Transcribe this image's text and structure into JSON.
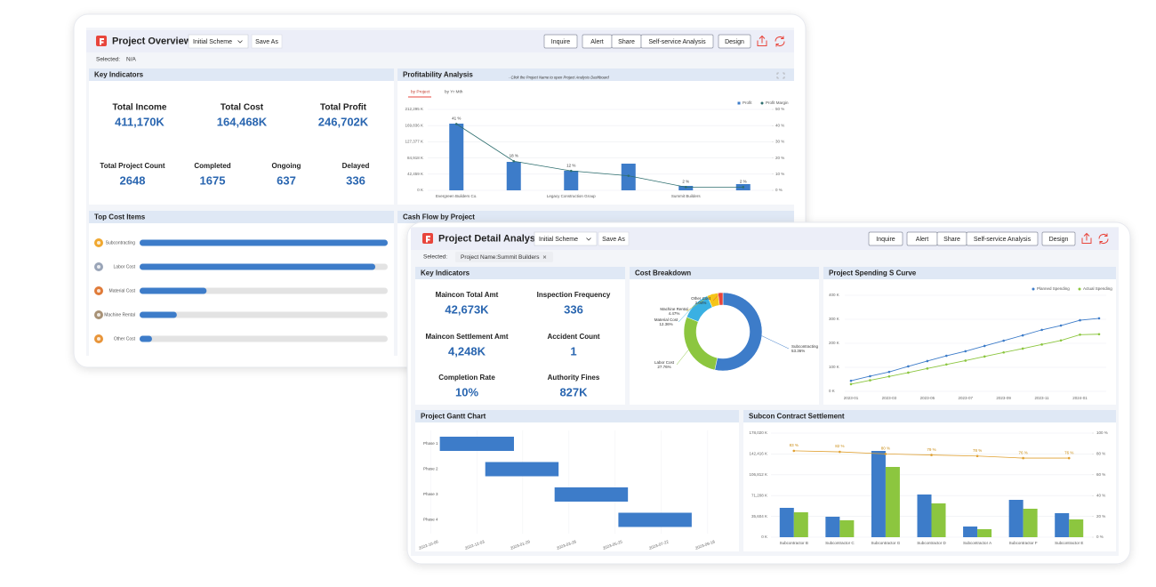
{
  "overview": {
    "toolbar": {
      "title": "Project Overview",
      "scheme": "Initial Scheme",
      "save": "Save As",
      "buttons": [
        "Inquire",
        "Alert",
        "Share",
        "Self-service Analysis",
        "Design"
      ]
    },
    "selected": {
      "label": "Selected:",
      "value": "N/A"
    },
    "key_indicators": {
      "title": "Key Indicators",
      "items": [
        {
          "label": "Total Income",
          "value": "411,170K"
        },
        {
          "label": "Total Cost",
          "value": "164,468K"
        },
        {
          "label": "Total Profit",
          "value": "246,702K"
        },
        {
          "label": "Total Project Count",
          "value": "2648"
        },
        {
          "label": "Completed",
          "value": "1675"
        },
        {
          "label": "Ongoing",
          "value": "637"
        },
        {
          "label": "Delayed",
          "value": "336"
        }
      ]
    },
    "top_cost_items": {
      "title": "Top Cost Items",
      "chart_data": {
        "type": "hbar",
        "categories": [
          "Subcontracting",
          "Labor Cost",
          "Material Cost",
          "Machine Rental",
          "Other Cost"
        ],
        "values": [
          100,
          95,
          27,
          15,
          5
        ],
        "xlim": [
          0,
          100
        ],
        "color": "#3d7cc9",
        "icon_colors": [
          "#f0a830",
          "#9aa5b8",
          "#e07b39",
          "#a89276",
          "#e8953a"
        ]
      }
    },
    "profitability": {
      "title": "Profitability Analysis",
      "tabs": [
        "by Project",
        "by Yr Mth"
      ],
      "note": "- Click the Project Name to open Project Analysis Dashboard",
      "chart_data": {
        "type": "combo",
        "categories": [
          "Evergreen Builders Co.",
          null,
          "Legacy Construction Group",
          null,
          "Summit Builders",
          null
        ],
        "series": [
          {
            "name": "Profit",
            "color": "#3d7cc9",
            "values": [
              174970,
              74650,
              51320,
              70000,
              11660,
              16330
            ]
          },
          {
            "name": "Profit Margin",
            "color": "#2d6e6e",
            "axis": "y2",
            "values": [
              41,
              18,
              12,
              9,
              2,
              2
            ],
            "value_labels": [
              "41 %",
              "18 %",
              "12 %",
              null,
              "2 %",
              "2 %"
            ]
          }
        ],
        "ylim": [
          0,
          212295
        ],
        "yticks": [
          {
            "value": 0,
            "label": "0 K"
          },
          {
            "value": 42459,
            "label": "42,459 K"
          },
          {
            "value": 84918,
            "label": "84,918 K"
          },
          {
            "value": 127377,
            "label": "127,377 K"
          },
          {
            "value": 169836,
            "label": "169,836 K"
          },
          {
            "value": 212295,
            "label": "212,295 K"
          }
        ],
        "y2lim": [
          0,
          50
        ],
        "y2ticks": [
          {
            "value": 0,
            "label": "0 %"
          },
          {
            "value": 10,
            "label": "10 %"
          },
          {
            "value": 20,
            "label": "20 %"
          },
          {
            "value": 30,
            "label": "30 %"
          },
          {
            "value": 40,
            "label": "40 %"
          },
          {
            "value": 50,
            "label": "50 %"
          }
        ]
      }
    },
    "cash_flow": {
      "title": "Cash Flow by Project"
    }
  },
  "detail": {
    "toolbar": {
      "title": "Project Detail Analysis",
      "scheme": "Initial Scheme",
      "save": "Save As",
      "buttons": [
        "Inquire",
        "Alert",
        "Share",
        "Self-service Analysis",
        "Design"
      ]
    },
    "selected": {
      "label": "Selected:",
      "value": "Project Name:Summit Builders"
    },
    "key_indicators": {
      "title": "Key Indicators",
      "items": [
        {
          "label": "Maincon Total Amt",
          "value": "42,673K"
        },
        {
          "label": "Inspection Frequency",
          "value": "336"
        },
        {
          "label": "Maincon Settlement Amt",
          "value": "4,248K"
        },
        {
          "label": "Accident Count",
          "value": "1"
        },
        {
          "label": "Completion Rate",
          "value": "10%"
        },
        {
          "label": "Authority Fines",
          "value": "827K"
        }
      ]
    },
    "cost_breakdown": {
      "title": "Cost Breakdown",
      "chart_data": {
        "type": "donut",
        "categories": [
          "Subcontracting",
          "Labor Cost",
          "Material Cost",
          "Machine Rental",
          "Other Cost"
        ],
        "values": [
          53.36,
          27.76,
          12.36,
          4.47,
          2.04
        ],
        "value_labels": [
          "53.36%",
          "27.76%",
          "12.36%",
          "4.47%",
          "2.04%"
        ],
        "colors": [
          "#3d7cc9",
          "#8cc63f",
          "#3ab0e2",
          "#f5c518",
          "#e8453c"
        ]
      }
    },
    "s_curve": {
      "title": "Project Spending S Curve",
      "chart_data": {
        "type": "line",
        "x": [
          "2023-01",
          null,
          "2023-03",
          null,
          "2023-05",
          null,
          "2023-07",
          null,
          "2023-09",
          null,
          "2023-11",
          null,
          "2024-01",
          null
        ],
        "series": [
          {
            "name": "Planned Spending",
            "color": "#3d7cc9",
            "values": [
              44,
              63,
              81,
              104,
              126,
              148,
              167,
              189,
              211,
              233,
              256,
              274,
              296,
              304
            ]
          },
          {
            "name": "Actual Spending",
            "color": "#8cc63f",
            "values": [
              30,
              46,
              62,
              78,
              95,
              112,
              128,
              145,
              162,
              178,
              195,
              212,
              236,
              238
            ]
          }
        ],
        "ylim": [
          0,
          400
        ],
        "yticks": [
          {
            "value": 0,
            "label": "0 K"
          },
          {
            "value": 100,
            "label": "100 K"
          },
          {
            "value": 200,
            "label": "200 K"
          },
          {
            "value": 300,
            "label": "300 K"
          },
          {
            "value": 400,
            "label": "400 K"
          }
        ]
      }
    },
    "gantt": {
      "title": "Project Gantt Chart",
      "chart_data": {
        "type": "gantt",
        "categories": [
          "Phase 1",
          "Phase 2",
          "Phase 3",
          "Phase 4"
        ],
        "start": [
          "2022-10-17",
          "2022-12-13",
          "2023-03-10",
          "2023-05-29"
        ],
        "end": [
          "2023-01-18",
          "2023-03-15",
          "2023-06-10",
          "2023-08-29"
        ],
        "color": "#3d7cc9",
        "xlim": [
          "2022-09-24",
          "2023-10-15"
        ],
        "xticks": [
          "2022-10-06",
          "2022-12-03",
          "2023-01-29",
          "2023-03-28",
          "2023-05-25",
          "2023-07-22",
          "2023-09-18"
        ]
      }
    },
    "subcon": {
      "title": "Subcon Contract Settlement",
      "chart_data": {
        "type": "combo",
        "categories": [
          "Subcontractor B",
          "Subcontractor C",
          "Subcontractor G",
          "Subcontractor D",
          "Subcontractor A",
          "Subcontractor F",
          "Subcontractor E"
        ],
        "series": [
          {
            "color": "#3d7cc9",
            "values": [
              50210,
              35000,
              147590,
              73030,
              18260,
              63900,
              41080
            ]
          },
          {
            "color": "#8cc63f",
            "values": [
              42600,
              28910,
              120200,
              57820,
              13690,
              48690,
              30430
            ]
          },
          {
            "color": "#e0a030",
            "axis": "y2",
            "values": [
              83,
              82,
              80,
              79,
              78,
              76,
              76
            ],
            "value_labels": [
              "83 %",
              "82 %",
              "80 %",
              "79 %",
              "78 %",
              "76 %",
              "76 %"
            ]
          }
        ],
        "ylim": [
          0,
          178020
        ],
        "yticks": [
          {
            "value": 0,
            "label": "0 K"
          },
          {
            "value": 35604,
            "label": "35,604 K"
          },
          {
            "value": 71208,
            "label": "71,208 K"
          },
          {
            "value": 106812,
            "label": "106,812 K"
          },
          {
            "value": 142416,
            "label": "142,416 K"
          },
          {
            "value": 178020,
            "label": "178,020 K"
          }
        ],
        "y2lim": [
          0,
          100
        ],
        "y2ticks": [
          {
            "value": 0,
            "label": "0 %"
          },
          {
            "value": 20,
            "label": "20 %"
          },
          {
            "value": 40,
            "label": "40 %"
          },
          {
            "value": 60,
            "label": "60 %"
          },
          {
            "value": 80,
            "label": "80 %"
          },
          {
            "value": 100,
            "label": "100 %"
          }
        ]
      }
    }
  }
}
